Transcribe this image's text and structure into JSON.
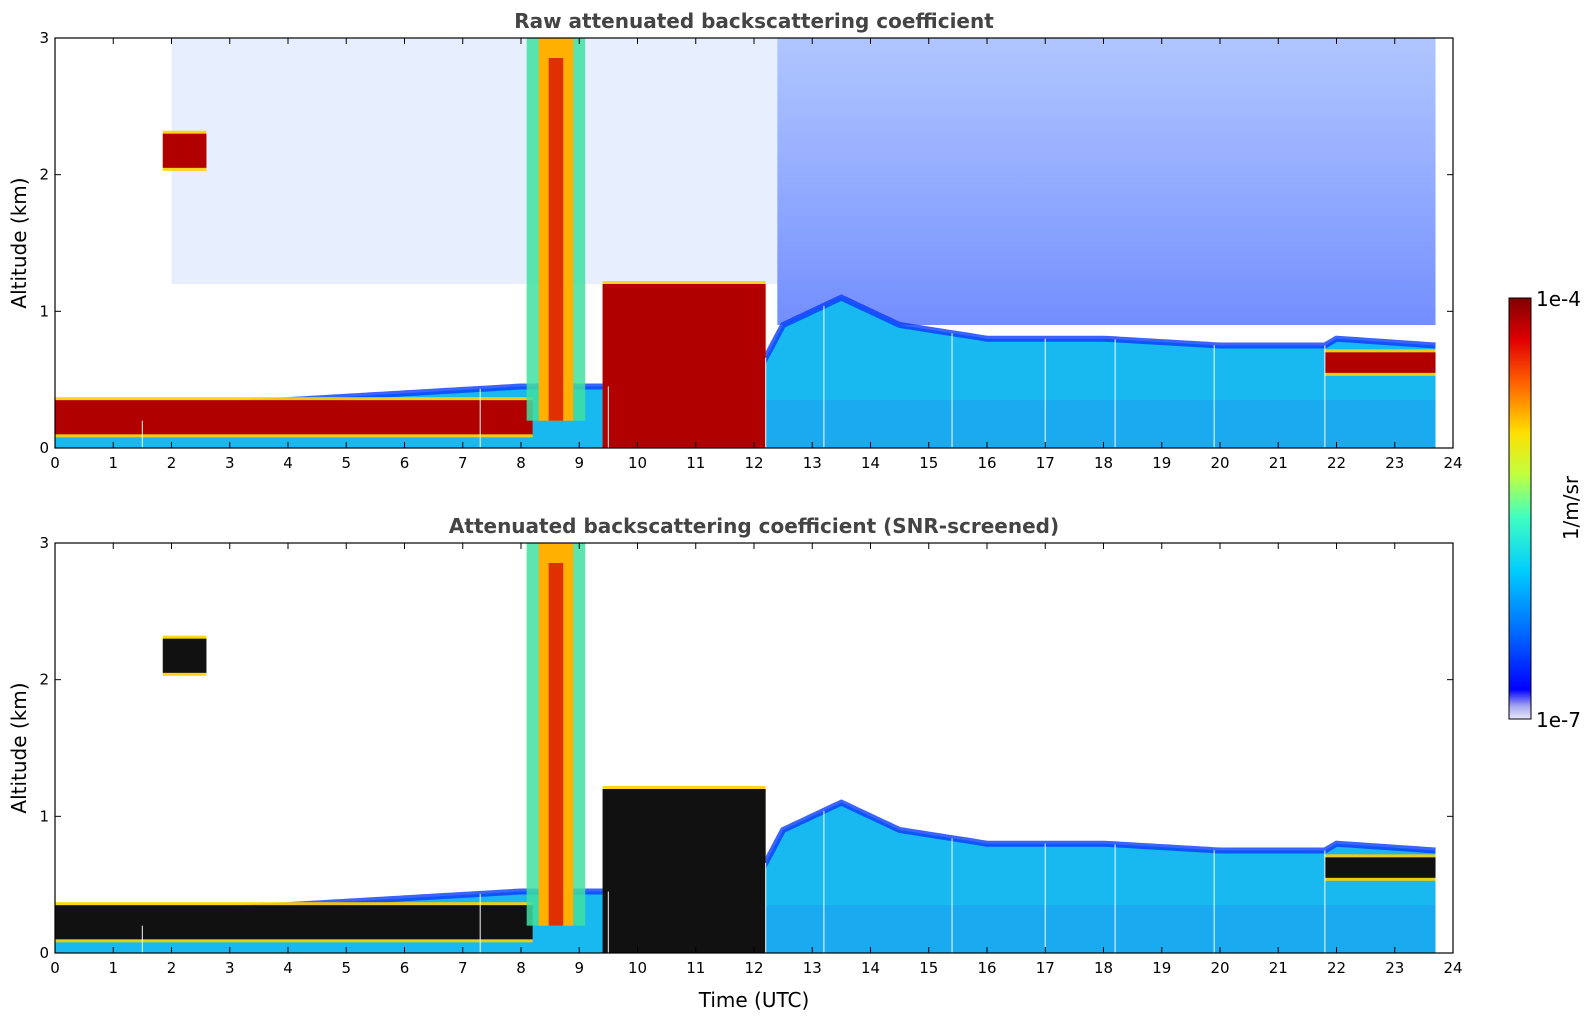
{
  "chart_data": [
    {
      "type": "heatmap",
      "title": "Raw attenuated backscattering coefficient",
      "xlabel": "",
      "ylabel": "Altitude (km)",
      "xlim": [
        0,
        24
      ],
      "ylim": [
        0,
        3
      ],
      "xticks": [
        "0",
        "1",
        "2",
        "3",
        "4",
        "5",
        "6",
        "7",
        "8",
        "9",
        "10",
        "11",
        "12",
        "13",
        "14",
        "15",
        "16",
        "17",
        "18",
        "19",
        "20",
        "21",
        "22",
        "23",
        "24"
      ],
      "yticks": [
        "0",
        "1",
        "2",
        "3"
      ],
      "features": {
        "boundary_layer_top_km": [
          [
            0,
            0.2
          ],
          [
            1.5,
            0.2
          ],
          [
            2,
            0.3
          ],
          [
            4,
            0.35
          ],
          [
            6,
            0.4
          ],
          [
            8,
            0.45
          ],
          [
            9,
            0.45
          ],
          [
            10,
            0.45
          ],
          [
            12,
            0.5
          ],
          [
            12.5,
            0.9
          ],
          [
            13.5,
            1.1
          ],
          [
            14.5,
            0.9
          ],
          [
            16,
            0.8
          ],
          [
            18,
            0.8
          ],
          [
            20,
            0.75
          ],
          [
            21.8,
            0.75
          ],
          [
            22,
            0.8
          ],
          [
            23.7,
            0.75
          ]
        ],
        "cloud_layers": [
          {
            "x": [
              1.85,
              2.6
            ],
            "y_km": [
              2.05,
              2.3
            ],
            "level": "high"
          },
          {
            "x": [
              0,
              8.2
            ],
            "y_km": [
              0.1,
              0.35
            ],
            "level": "high"
          },
          {
            "x": [
              8.2,
              9.0
            ],
            "y_km": [
              0.2,
              3.0
            ],
            "level": "high"
          },
          {
            "x": [
              9.4,
              12.2
            ],
            "y_km": [
              0.0,
              1.2
            ],
            "level": "high"
          },
          {
            "x": [
              21.8,
              23.7
            ],
            "y_km": [
              0.55,
              0.7
            ],
            "level": "high"
          }
        ]
      },
      "colorbar": {
        "label": "1/m/sr",
        "min": "1e-7",
        "max": "1e-4",
        "scale": "log",
        "colormap": "jet"
      },
      "data_end_hour": 23.7
    },
    {
      "type": "heatmap",
      "title": "Attenuated backscattering coefficient (SNR-screened)",
      "xlabel": "Time (UTC)",
      "ylabel": "Altitude (km)",
      "xlim": [
        0,
        24
      ],
      "ylim": [
        0,
        3
      ],
      "xticks": [
        "0",
        "1",
        "2",
        "3",
        "4",
        "5",
        "6",
        "7",
        "8",
        "9",
        "10",
        "11",
        "12",
        "13",
        "14",
        "15",
        "16",
        "17",
        "18",
        "19",
        "20",
        "21",
        "22",
        "23",
        "24"
      ],
      "yticks": [
        "0",
        "1",
        "2",
        "3"
      ],
      "colorbar": {
        "label": "1/m/sr",
        "min": "1e-7",
        "max": "1e-4",
        "scale": "log",
        "colormap": "jet"
      },
      "data_end_hour": 23.7
    }
  ],
  "colorbar": {
    "top_label": "1e-4",
    "bottom_label": "1e-7",
    "unit_label": "1/m/sr"
  }
}
